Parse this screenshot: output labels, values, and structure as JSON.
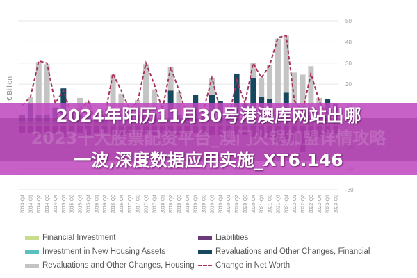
{
  "chart_data": {
    "type": "bar",
    "stacked": true,
    "ylabel": "€ Billion",
    "ylim": [
      -30,
      50
    ],
    "yticks": [
      50,
      40,
      30,
      20,
      10,
      0,
      -10,
      -20,
      -30
    ],
    "grid": true,
    "legend_position": "bottom",
    "categories": [
      "2013-Q4",
      "2014-Q1",
      "2014-Q2",
      "2014-Q3",
      "2014-Q4",
      "2015-Q1",
      "2015-Q2",
      "2015-Q3",
      "2015-Q4",
      "2016-Q1",
      "2016-Q2",
      "2016-Q3",
      "2016-Q4",
      "2017-Q1",
      "2017-Q2",
      "2017-Q3",
      "2017-Q4",
      "2018-Q1",
      "2018-Q2",
      "2018-Q3",
      "2018-Q4",
      "2019-Q1",
      "2019-Q2",
      "2019-Q3",
      "2019-Q4",
      "2020-Q1",
      "2020-Q2",
      "2020-Q3",
      "2020-Q4",
      "2021-Q1",
      "2021-Q2",
      "2021-Q3",
      "2021-Q4",
      "2022-Q1",
      "2022-Q2",
      "2022-Q3",
      "2022-Q4",
      "2023-Q1",
      "2023-Q2"
    ],
    "series": [
      {
        "name": "Financial Investment",
        "kind": "bar",
        "color": "#c9dc8c",
        "values": [
          1,
          1,
          1,
          1,
          1,
          1,
          1,
          1,
          1,
          1,
          1,
          1,
          1,
          1,
          1,
          1,
          1,
          1,
          1,
          1,
          1,
          1,
          1,
          1,
          1,
          1,
          1,
          1,
          1,
          1,
          1,
          1,
          1,
          1,
          1,
          1,
          1,
          1,
          1
        ]
      },
      {
        "name": "Investment in New Housing Assets",
        "kind": "bar",
        "color": "#5bbfbf",
        "values": [
          1.5,
          1.5,
          1.5,
          1.5,
          1.5,
          1.5,
          1.5,
          1.5,
          1.5,
          1.5,
          1.5,
          1.5,
          1.5,
          1.5,
          1.5,
          1.5,
          1.5,
          1.5,
          1.5,
          1.5,
          1.5,
          1.5,
          1.5,
          1.5,
          1.5,
          1.5,
          1.5,
          1.5,
          1.5,
          1.5,
          1.5,
          1.5,
          1.5,
          1.5,
          1.5,
          1.5,
          1.5,
          1.5,
          1.5
        ]
      },
      {
        "name": "Revaluations and Other Changes, Financial",
        "kind": "bar",
        "color": "#17485e",
        "values": [
          3,
          8.5,
          3,
          3,
          6.5,
          15.5,
          3,
          3,
          3,
          3,
          3,
          3,
          3,
          3,
          3,
          3,
          3,
          3,
          14.5,
          3,
          3,
          12.5,
          3,
          12.5,
          9.5,
          3,
          22.5,
          8.5,
          20.5,
          11.5,
          10.5,
          3,
          13.5,
          3,
          3,
          3,
          3,
          10.5,
          8.5
        ]
      },
      {
        "name": "Revaluations and Other Changes, Housing",
        "kind": "bar",
        "color": "#c4c4c4",
        "values": [
          0,
          3,
          25,
          24,
          0,
          0,
          0,
          8,
          6,
          0,
          0,
          19,
          10,
          0,
          7,
          24,
          12,
          0,
          11,
          11,
          0,
          0,
          0,
          8,
          0,
          0,
          0,
          0,
          7,
          9,
          16,
          36,
          27,
          20,
          19,
          23,
          8,
          0,
          0
        ]
      },
      {
        "name": "Liabilities",
        "kind": "bar",
        "color": "#6a3a7a",
        "values": [
          -3,
          -3,
          -4,
          -4,
          -3,
          -5,
          -3,
          -3,
          -4,
          -3,
          -3,
          -4,
          -4,
          -3,
          -3,
          -4,
          -4,
          -3,
          -4,
          -4,
          -3,
          -3,
          -3,
          -4,
          -4,
          -6,
          -4,
          -4,
          -5,
          -5,
          -5,
          -8,
          -6,
          -7,
          -12,
          -5,
          -5,
          -4,
          -4
        ]
      },
      {
        "name": "Change in Net Worth",
        "kind": "line",
        "color": "#a8325e",
        "values": [
          10,
          14,
          31,
          30,
          11,
          17,
          5,
          8,
          12,
          2,
          5,
          25,
          17,
          8,
          12,
          30,
          20,
          8,
          28,
          17,
          5,
          4,
          8,
          23,
          8,
          3,
          22,
          11,
          30,
          23,
          29,
          42,
          43,
          12,
          7,
          25,
          12,
          5,
          6
        ]
      }
    ]
  },
  "banner": {
    "title_line1": "2024年阳历11月30号港澳库网站出哪",
    "title_line2": "一波,深度数据应用实施_XT6.146",
    "watermark": "2023十大股票配资平台_澳门火锅加盟详情攻略",
    "color": "#c050c0"
  }
}
